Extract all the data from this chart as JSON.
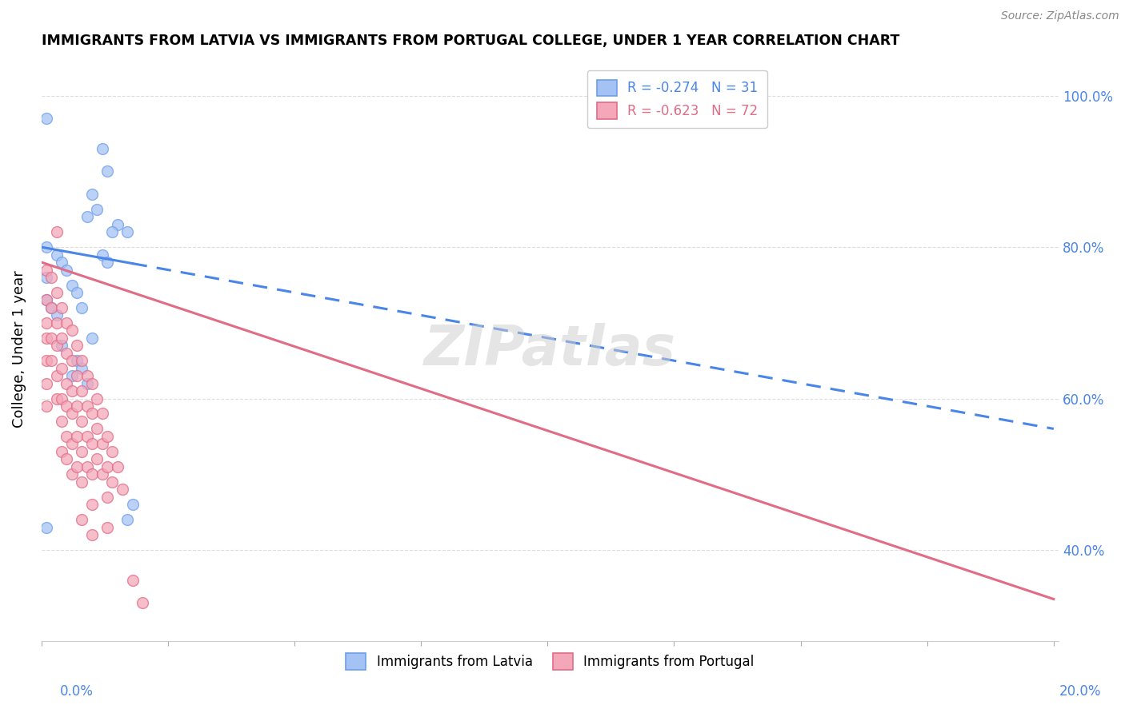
{
  "title": "IMMIGRANTS FROM LATVIA VS IMMIGRANTS FROM PORTUGAL COLLEGE, UNDER 1 YEAR CORRELATION CHART",
  "source": "Source: ZipAtlas.com",
  "ylabel": "College, Under 1 year",
  "legend1_label": "R = -0.274   N = 31",
  "legend2_label": "R = -0.623   N = 72",
  "latvia_color": "#a4c2f4",
  "portugal_color": "#f4a7b9",
  "latvia_edge_color": "#6d9eeb",
  "portugal_edge_color": "#e06c85",
  "latvia_line_color": "#4a86e8",
  "portugal_line_color": "#e06c85",
  "latvia_scatter": [
    [
      0.001,
      0.97
    ],
    [
      0.012,
      0.93
    ],
    [
      0.013,
      0.9
    ],
    [
      0.01,
      0.87
    ],
    [
      0.011,
      0.85
    ],
    [
      0.009,
      0.84
    ],
    [
      0.015,
      0.83
    ],
    [
      0.014,
      0.82
    ],
    [
      0.017,
      0.82
    ],
    [
      0.001,
      0.8
    ],
    [
      0.003,
      0.79
    ],
    [
      0.012,
      0.79
    ],
    [
      0.004,
      0.78
    ],
    [
      0.013,
      0.78
    ],
    [
      0.005,
      0.77
    ],
    [
      0.001,
      0.76
    ],
    [
      0.006,
      0.75
    ],
    [
      0.007,
      0.74
    ],
    [
      0.001,
      0.73
    ],
    [
      0.008,
      0.72
    ],
    [
      0.002,
      0.72
    ],
    [
      0.003,
      0.71
    ],
    [
      0.01,
      0.68
    ],
    [
      0.004,
      0.67
    ],
    [
      0.007,
      0.65
    ],
    [
      0.008,
      0.64
    ],
    [
      0.006,
      0.63
    ],
    [
      0.009,
      0.62
    ],
    [
      0.018,
      0.46
    ],
    [
      0.001,
      0.43
    ],
    [
      0.017,
      0.44
    ]
  ],
  "portugal_scatter": [
    [
      0.001,
      0.77
    ],
    [
      0.001,
      0.73
    ],
    [
      0.001,
      0.7
    ],
    [
      0.001,
      0.68
    ],
    [
      0.001,
      0.65
    ],
    [
      0.001,
      0.62
    ],
    [
      0.001,
      0.59
    ],
    [
      0.002,
      0.76
    ],
    [
      0.002,
      0.72
    ],
    [
      0.002,
      0.68
    ],
    [
      0.002,
      0.65
    ],
    [
      0.003,
      0.82
    ],
    [
      0.003,
      0.74
    ],
    [
      0.003,
      0.7
    ],
    [
      0.003,
      0.67
    ],
    [
      0.003,
      0.63
    ],
    [
      0.003,
      0.6
    ],
    [
      0.004,
      0.72
    ],
    [
      0.004,
      0.68
    ],
    [
      0.004,
      0.64
    ],
    [
      0.004,
      0.6
    ],
    [
      0.004,
      0.57
    ],
    [
      0.004,
      0.53
    ],
    [
      0.005,
      0.7
    ],
    [
      0.005,
      0.66
    ],
    [
      0.005,
      0.62
    ],
    [
      0.005,
      0.59
    ],
    [
      0.005,
      0.55
    ],
    [
      0.005,
      0.52
    ],
    [
      0.006,
      0.69
    ],
    [
      0.006,
      0.65
    ],
    [
      0.006,
      0.61
    ],
    [
      0.006,
      0.58
    ],
    [
      0.006,
      0.54
    ],
    [
      0.006,
      0.5
    ],
    [
      0.007,
      0.67
    ],
    [
      0.007,
      0.63
    ],
    [
      0.007,
      0.59
    ],
    [
      0.007,
      0.55
    ],
    [
      0.007,
      0.51
    ],
    [
      0.008,
      0.65
    ],
    [
      0.008,
      0.61
    ],
    [
      0.008,
      0.57
    ],
    [
      0.008,
      0.53
    ],
    [
      0.008,
      0.49
    ],
    [
      0.008,
      0.44
    ],
    [
      0.009,
      0.63
    ],
    [
      0.009,
      0.59
    ],
    [
      0.009,
      0.55
    ],
    [
      0.009,
      0.51
    ],
    [
      0.01,
      0.62
    ],
    [
      0.01,
      0.58
    ],
    [
      0.01,
      0.54
    ],
    [
      0.01,
      0.5
    ],
    [
      0.01,
      0.46
    ],
    [
      0.01,
      0.42
    ],
    [
      0.011,
      0.6
    ],
    [
      0.011,
      0.56
    ],
    [
      0.011,
      0.52
    ],
    [
      0.012,
      0.58
    ],
    [
      0.012,
      0.54
    ],
    [
      0.012,
      0.5
    ],
    [
      0.013,
      0.55
    ],
    [
      0.013,
      0.51
    ],
    [
      0.013,
      0.47
    ],
    [
      0.013,
      0.43
    ],
    [
      0.014,
      0.53
    ],
    [
      0.014,
      0.49
    ],
    [
      0.015,
      0.51
    ],
    [
      0.016,
      0.48
    ],
    [
      0.018,
      0.36
    ],
    [
      0.02,
      0.33
    ]
  ],
  "latvia_line": [
    [
      0.0,
      0.8
    ],
    [
      0.2,
      0.56
    ]
  ],
  "portugal_line": [
    [
      0.0,
      0.78
    ],
    [
      0.2,
      0.335
    ]
  ],
  "latvia_line_solid_end": 0.018,
  "xlim": [
    0.0,
    0.201
  ],
  "ylim": [
    0.28,
    1.05
  ],
  "x_ticks": [
    0.0,
    0.025,
    0.05,
    0.075,
    0.1,
    0.125,
    0.15,
    0.175,
    0.2
  ],
  "y_ticks": [
    0.4,
    0.6,
    0.8,
    1.0
  ],
  "background_color": "#ffffff",
  "grid_color": "#dddddd"
}
